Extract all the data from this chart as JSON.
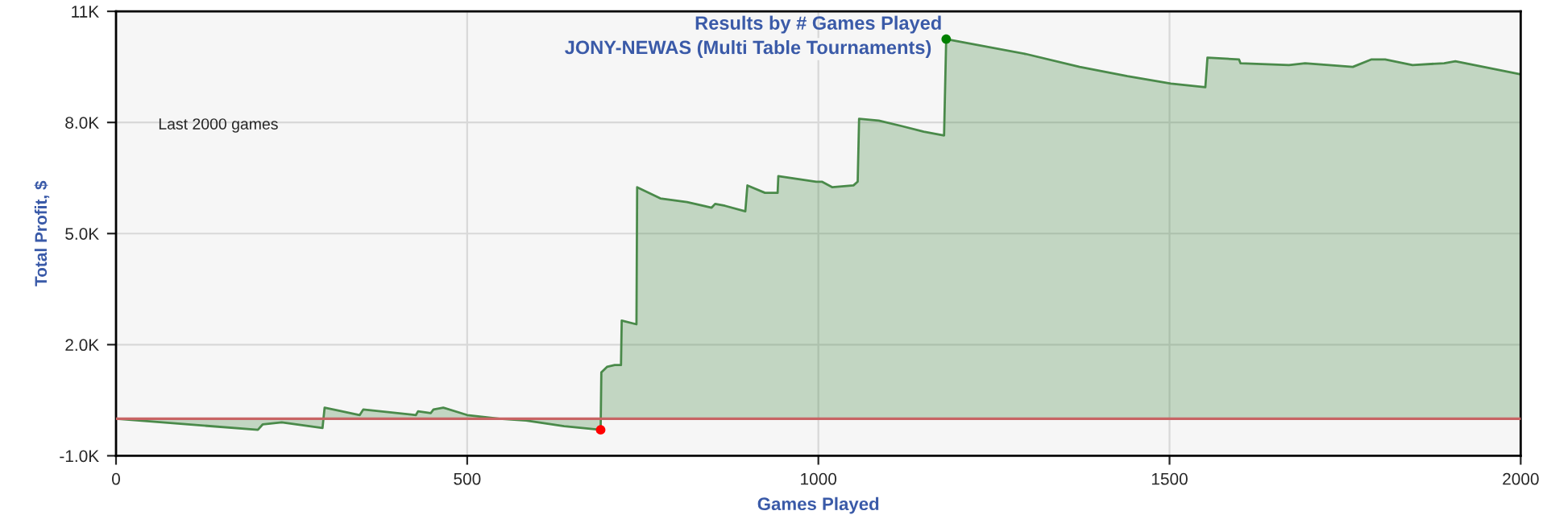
{
  "chart_data": {
    "type": "area",
    "title": "Results by # Games Played",
    "subtitle": "JONY-NEWAS (Multi Table Tournaments)",
    "xlabel": "Games Played",
    "ylabel": "Total Profit, $",
    "annotations": [
      "Last 2000 games"
    ],
    "xlim": [
      0,
      2000
    ],
    "xticks": [
      0,
      500,
      1000,
      1500,
      2000
    ],
    "ylim": [
      -1000,
      11000
    ],
    "yticks": [
      {
        "value": -1000,
        "label": "-1.0K"
      },
      {
        "value": 2000,
        "label": "2.0K"
      },
      {
        "value": 5000,
        "label": "5.0K"
      },
      {
        "value": 8000,
        "label": "8.0K"
      },
      {
        "value": 11000,
        "label": "11K"
      }
    ],
    "grid": true,
    "legend": false,
    "ref_lines": [
      {
        "axis": "y",
        "value": 0,
        "color": "#c86464"
      }
    ],
    "series": [
      {
        "color": "#4a8a4a",
        "x": [
          0,
          202,
          209,
          236,
          294,
          297,
          347,
          352,
          427,
          430,
          448,
          452,
          466,
          500,
          546,
          584,
          638,
          690,
          691,
          699,
          710,
          719,
          720,
          741,
          742,
          775,
          813,
          848,
          853,
          867,
          896,
          899,
          924,
          942,
          943,
          997,
          1005,
          1020,
          1050,
          1056,
          1058,
          1086,
          1119,
          1150,
          1179,
          1182,
          1295,
          1372,
          1440,
          1502,
          1551,
          1554,
          1599,
          1601,
          1670,
          1693,
          1761,
          1787,
          1807,
          1846,
          1891,
          1907,
          2000
        ],
        "values": [
          0,
          -300,
          -150,
          -100,
          -250,
          300,
          100,
          250,
          100,
          200,
          150,
          250,
          300,
          100,
          0,
          -50,
          -200,
          -300,
          1250,
          1400,
          1450,
          1450,
          2650,
          2550,
          6250,
          5950,
          5850,
          5700,
          5800,
          5750,
          5600,
          6300,
          6100,
          6100,
          6550,
          6400,
          6400,
          6250,
          6300,
          6400,
          8100,
          8050,
          7900,
          7750,
          7650,
          10250,
          9850,
          9500,
          9250,
          9050,
          8950,
          9750,
          9700,
          9600,
          9550,
          9600,
          9500,
          9700,
          9700,
          9550,
          9600,
          9650,
          9300
        ]
      },
      {
        "type": "scatter",
        "x": [
          690,
          1182
        ],
        "values": [
          -300,
          10250
        ],
        "colors": [
          "#ff0000",
          "#008000"
        ]
      }
    ]
  }
}
